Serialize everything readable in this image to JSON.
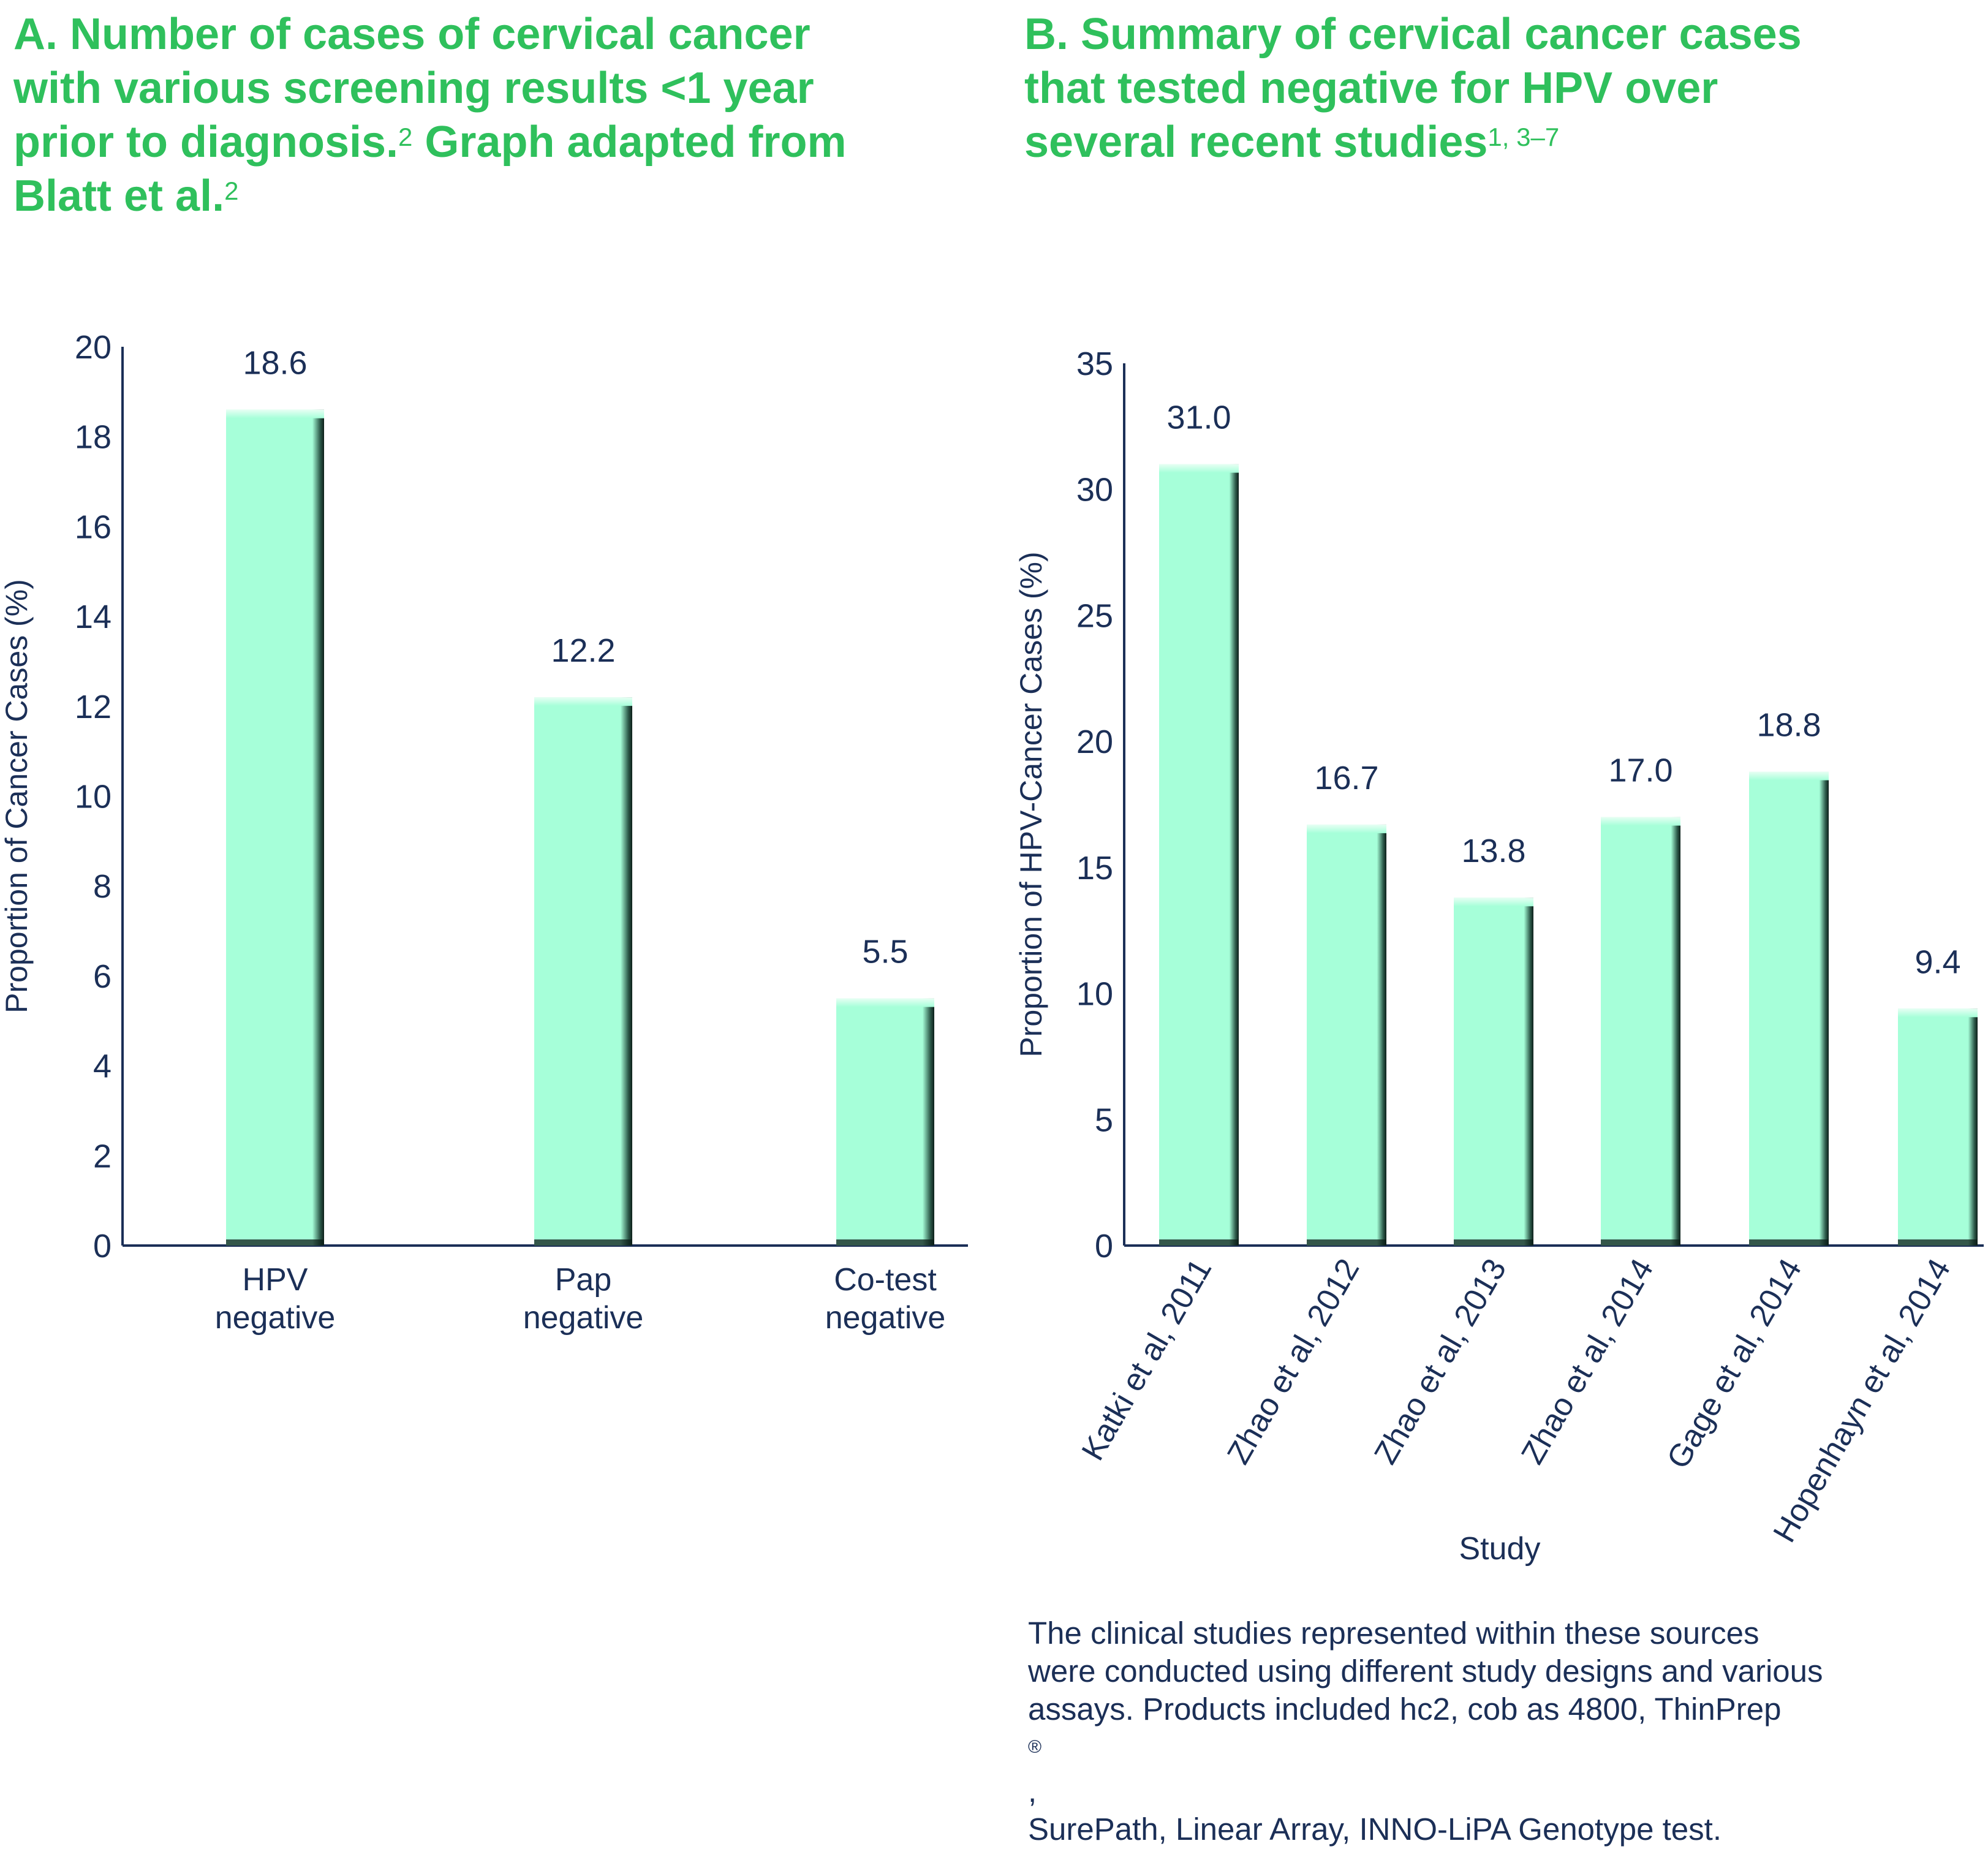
{
  "panel_a": {
    "title_label": "A.",
    "title_lines": [
      "Number of cases of cervical cancer",
      "with various screening results <1 year",
      "prior to diagnosis.",
      "Graph adapted from",
      "Blatt et al."
    ],
    "title_ref_1": "2",
    "title_ref_2": "2"
  },
  "panel_b": {
    "title_label": "B.",
    "title_lines": [
      "Summary of cervical cancer cases",
      "that tested negative for HPV over",
      "several recent studies"
    ],
    "title_ref": "1, 3–7"
  },
  "footnote_lines": [
    "The clinical studies represented within these sources",
    "were conducted using different study designs and various",
    "assays. Products included hc2, cob as 4800, ThinPrep",
    "SurePath, Linear Array, INNO-LiPA Genotype test."
  ],
  "footnote_reg": "®",
  "footnote_comma": ",",
  "colors": {
    "title_green": "#2fc05c",
    "bar_fill": "#a6ffd9",
    "bar_shade": "#0d1f1a",
    "axis_navy": "#1b2f57"
  },
  "chart_data": [
    {
      "type": "bar",
      "title": "",
      "xlabel": "",
      "ylabel": "Proportion of Cancer Cases (%)",
      "ylim": [
        0,
        20
      ],
      "yticks": [
        0,
        2,
        4,
        6,
        8,
        10,
        12,
        14,
        16,
        18,
        20
      ],
      "categories": [
        [
          "HPV",
          "negative"
        ],
        [
          "Pap",
          "negative"
        ],
        [
          "Co-test",
          "negative"
        ]
      ],
      "values": [
        18.6,
        12.2,
        5.5
      ],
      "value_labels": [
        "18.6",
        "12.2",
        "5.5"
      ],
      "grid": false,
      "legend": "none"
    },
    {
      "type": "bar",
      "title": "",
      "xlabel": "Study",
      "ylabel": "Proportion of HPV-Cancer Cases (%)",
      "ylim": [
        0,
        35
      ],
      "yticks": [
        0,
        5,
        10,
        15,
        20,
        25,
        30,
        35
      ],
      "categories": [
        "Katki et al, 2011",
        "Zhao et al, 2012",
        "Zhao et al, 2013",
        "Zhao et al, 2014",
        "Gage et al, 2014",
        "Hopenhayn et al, 2014"
      ],
      "values": [
        31.0,
        16.7,
        13.8,
        17.0,
        18.8,
        9.4
      ],
      "value_labels": [
        "31.0",
        "16.7",
        "13.8",
        "17.0",
        "18.8",
        "9.4"
      ],
      "grid": false,
      "legend": "none"
    }
  ]
}
